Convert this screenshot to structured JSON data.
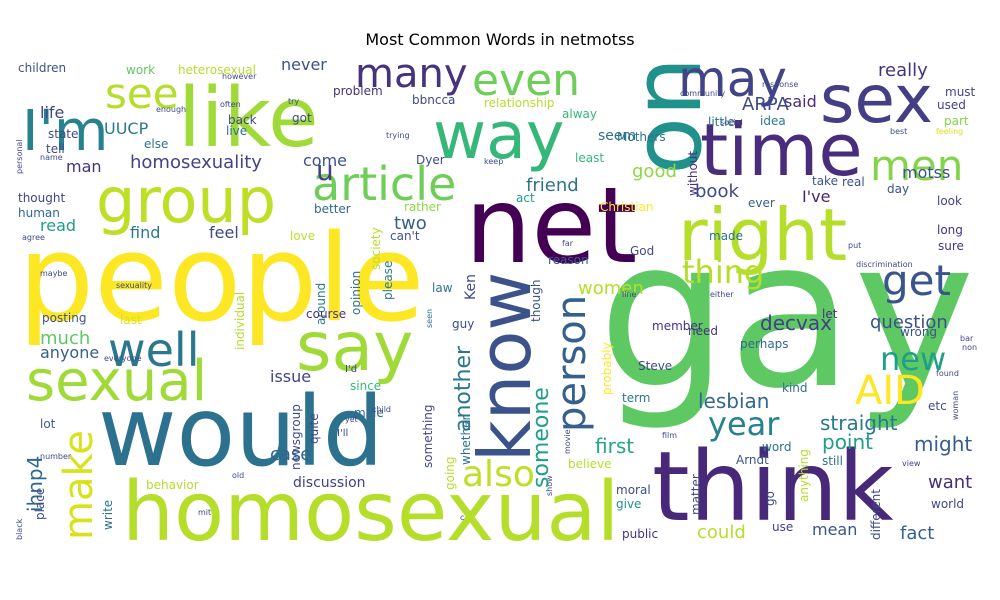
{
  "title": "Most Common Words in netmotss",
  "chart_data": {
    "type": "wordcloud",
    "title": "Most Common Words in netmotss",
    "palette": "viridis",
    "words": [
      {
        "text": "gay",
        "weight": 1.0
      },
      {
        "text": "people",
        "weight": 0.92
      },
      {
        "text": "one",
        "weight": 0.88
      },
      {
        "text": "net",
        "weight": 0.8
      },
      {
        "text": "think",
        "weight": 0.78
      },
      {
        "text": "would",
        "weight": 0.76
      },
      {
        "text": "homosexual",
        "weight": 0.72
      },
      {
        "text": "like",
        "weight": 0.7
      },
      {
        "text": "right",
        "weight": 0.66
      },
      {
        "text": "know",
        "weight": 0.64
      },
      {
        "text": "time",
        "weight": 0.6
      },
      {
        "text": "way",
        "weight": 0.56
      },
      {
        "text": "group",
        "weight": 0.54
      },
      {
        "text": "sex",
        "weight": 0.52
      },
      {
        "text": "I'm",
        "weight": 0.5
      },
      {
        "text": "sexual",
        "weight": 0.48
      },
      {
        "text": "say",
        "weight": 0.46
      },
      {
        "text": "article",
        "weight": 0.42
      },
      {
        "text": "may",
        "weight": 0.4
      },
      {
        "text": "even",
        "weight": 0.4
      },
      {
        "text": "many",
        "weight": 0.36
      },
      {
        "text": "see",
        "weight": 0.36
      },
      {
        "text": "person",
        "weight": 0.36
      },
      {
        "text": "well",
        "weight": 0.36
      },
      {
        "text": "men",
        "weight": 0.36
      },
      {
        "text": "AID",
        "weight": 0.34
      },
      {
        "text": "get",
        "weight": 0.34
      },
      {
        "text": "make",
        "weight": 0.32
      },
      {
        "text": "also",
        "weight": 0.32
      },
      {
        "text": "year",
        "weight": 0.3
      },
      {
        "text": "thing",
        "weight": 0.3
      },
      {
        "text": "new",
        "weight": 0.28
      },
      {
        "text": "u",
        "weight": 0.26
      },
      {
        "text": "someone",
        "weight": 0.22
      },
      {
        "text": "another",
        "weight": 0.22
      },
      {
        "text": "ihnp4",
        "weight": 0.2
      },
      {
        "text": "decvax",
        "weight": 0.2
      },
      {
        "text": "lesbian",
        "weight": 0.2
      },
      {
        "text": "straight",
        "weight": 0.2
      },
      {
        "text": "question",
        "weight": 0.2
      },
      {
        "text": "point",
        "weight": 0.18
      },
      {
        "text": "might",
        "weight": 0.18
      },
      {
        "text": "first",
        "weight": 0.18
      },
      {
        "text": "book",
        "weight": 0.18
      },
      {
        "text": "good",
        "weight": 0.18
      },
      {
        "text": "friend",
        "weight": 0.18
      },
      {
        "text": "really",
        "weight": 0.18
      },
      {
        "text": "homosexuality",
        "weight": 0.18
      },
      {
        "text": "ARPA",
        "weight": 0.18
      },
      {
        "text": "two",
        "weight": 0.18
      },
      {
        "text": "women",
        "weight": 0.18
      },
      {
        "text": "UUCP",
        "weight": 0.16
      },
      {
        "text": "said",
        "weight": 0.16
      },
      {
        "text": "never",
        "weight": 0.16
      },
      {
        "text": "much",
        "weight": 0.16
      },
      {
        "text": "anyone",
        "weight": 0.16
      },
      {
        "text": "case",
        "weight": 0.16
      },
      {
        "text": "could",
        "weight": 0.16
      },
      {
        "text": "want",
        "weight": 0.16
      },
      {
        "text": "fact",
        "weight": 0.16
      },
      {
        "text": "mean",
        "weight": 0.16
      },
      {
        "text": "issue",
        "weight": 0.16
      },
      {
        "text": "find",
        "weight": 0.16
      },
      {
        "text": "feel",
        "weight": 0.16
      },
      {
        "text": "life",
        "weight": 0.16
      },
      {
        "text": "come",
        "weight": 0.16
      },
      {
        "text": "I've",
        "weight": 0.16
      },
      {
        "text": "man",
        "weight": 0.16
      },
      {
        "text": "read",
        "weight": 0.16
      },
      {
        "text": "motss",
        "weight": 0.16
      },
      {
        "text": "seem",
        "weight": 0.14
      },
      {
        "text": "discussion",
        "weight": 0.14
      },
      {
        "text": "Ken",
        "weight": 0.14
      },
      {
        "text": "Dyer",
        "weight": 0.12
      },
      {
        "text": "bbncca",
        "weight": 0.12
      },
      {
        "text": "thought",
        "weight": 0.12
      },
      {
        "text": "human",
        "weight": 0.12
      },
      {
        "text": "posting",
        "weight": 0.12
      },
      {
        "text": "children",
        "weight": 0.12
      },
      {
        "text": "work",
        "weight": 0.12
      },
      {
        "text": "heterosexual",
        "weight": 0.12
      },
      {
        "text": "problem",
        "weight": 0.12
      },
      {
        "text": "relationship",
        "weight": 0.12
      },
      {
        "text": "least",
        "weight": 0.12
      },
      {
        "text": "Mothers",
        "weight": 0.12
      },
      {
        "text": "little",
        "weight": 0.12
      },
      {
        "text": "idea",
        "weight": 0.12
      },
      {
        "text": "must",
        "weight": 0.12
      },
      {
        "text": "used",
        "weight": 0.12
      },
      {
        "text": "part",
        "weight": 0.12
      },
      {
        "text": "look",
        "weight": 0.12
      },
      {
        "text": "long",
        "weight": 0.12
      },
      {
        "text": "sure",
        "weight": 0.12
      },
      {
        "text": "take",
        "weight": 0.12
      },
      {
        "text": "real",
        "weight": 0.12
      },
      {
        "text": "day",
        "weight": 0.12
      },
      {
        "text": "ever",
        "weight": 0.12
      },
      {
        "text": "made",
        "weight": 0.12
      },
      {
        "text": "God",
        "weight": 0.12
      },
      {
        "text": "Christian",
        "weight": 0.12
      },
      {
        "text": "rather",
        "weight": 0.12
      },
      {
        "text": "act",
        "weight": 0.12
      },
      {
        "text": "can't",
        "weight": 0.12
      },
      {
        "text": "better",
        "weight": 0.12
      },
      {
        "text": "love",
        "weight": 0.12
      },
      {
        "text": "opinion",
        "weight": 0.12
      },
      {
        "text": "around",
        "weight": 0.12
      },
      {
        "text": "society",
        "weight": 0.12
      },
      {
        "text": "please",
        "weight": 0.12
      },
      {
        "text": "reason",
        "weight": 0.12
      },
      {
        "text": "law",
        "weight": 0.12
      },
      {
        "text": "course",
        "weight": 0.12
      },
      {
        "text": "last",
        "weight": 0.12
      },
      {
        "text": "individual",
        "weight": 0.12
      },
      {
        "text": "guy",
        "weight": 0.12
      },
      {
        "text": "though",
        "weight": 0.12
      },
      {
        "text": "probably",
        "weight": 0.12
      },
      {
        "text": "member",
        "weight": 0.12
      },
      {
        "text": "need",
        "weight": 0.12
      },
      {
        "text": "perhaps",
        "weight": 0.12
      },
      {
        "text": "let",
        "weight": 0.12
      },
      {
        "text": "wrong",
        "weight": 0.12
      },
      {
        "text": "kind",
        "weight": 0.12
      },
      {
        "text": "Steve",
        "weight": 0.12
      },
      {
        "text": "term",
        "weight": 0.12
      },
      {
        "text": "since",
        "weight": 0.12
      },
      {
        "text": "male",
        "weight": 0.12
      },
      {
        "text": "quite",
        "weight": 0.12
      },
      {
        "text": "newsgroup",
        "weight": 0.12
      },
      {
        "text": "something",
        "weight": 0.12
      },
      {
        "text": "whether",
        "weight": 0.12
      },
      {
        "text": "going",
        "weight": 0.12
      },
      {
        "text": "believe",
        "weight": 0.12
      },
      {
        "text": "moral",
        "weight": 0.12
      },
      {
        "text": "give",
        "weight": 0.12
      },
      {
        "text": "public",
        "weight": 0.12
      },
      {
        "text": "Arndt",
        "weight": 0.12
      },
      {
        "text": "word",
        "weight": 0.12
      },
      {
        "text": "still",
        "weight": 0.12
      },
      {
        "text": "etc",
        "weight": 0.12
      },
      {
        "text": "world",
        "weight": 0.12
      },
      {
        "text": "use",
        "weight": 0.12
      },
      {
        "text": "go",
        "weight": 0.12
      },
      {
        "text": "anything",
        "weight": 0.12
      },
      {
        "text": "different",
        "weight": 0.12
      },
      {
        "text": "matter",
        "weight": 0.1
      },
      {
        "text": "behavior",
        "weight": 0.12
      },
      {
        "text": "write",
        "weight": 0.12
      },
      {
        "text": "place",
        "weight": 0.12
      },
      {
        "text": "lot",
        "weight": 0.12
      },
      {
        "text": "state",
        "weight": 0.12
      },
      {
        "text": "tell",
        "weight": 0.12
      },
      {
        "text": "else",
        "weight": 0.12
      },
      {
        "text": "back",
        "weight": 0.12
      },
      {
        "text": "got",
        "weight": 0.12
      },
      {
        "text": "live",
        "weight": 0.12
      },
      {
        "text": "alway",
        "weight": 0.12
      },
      {
        "text": "without",
        "weight": 0.12
      },
      {
        "text": "I'd",
        "weight": 0.1
      },
      {
        "text": "I'll",
        "weight": 0.1
      },
      {
        "text": "child",
        "weight": 0.08
      },
      {
        "text": "yet",
        "weight": 0.08
      },
      {
        "text": "seen",
        "weight": 0.06
      },
      {
        "text": "community",
        "weight": 0.06
      },
      {
        "text": "social",
        "weight": 0.06
      },
      {
        "text": "response",
        "weight": 0.06
      },
      {
        "text": "trying",
        "weight": 0.06
      },
      {
        "text": "keep",
        "weight": 0.06
      },
      {
        "text": "however",
        "weight": 0.06
      },
      {
        "text": "often",
        "weight": 0.06
      },
      {
        "text": "try",
        "weight": 0.06
      },
      {
        "text": "enough",
        "weight": 0.06
      },
      {
        "text": "name",
        "weight": 0.06
      },
      {
        "text": "personal",
        "weight": 0.06
      },
      {
        "text": "agree",
        "weight": 0.06
      },
      {
        "text": "maybe",
        "weight": 0.06
      },
      {
        "text": "sexuality",
        "weight": 0.06
      },
      {
        "text": "everyone",
        "weight": 0.06
      },
      {
        "text": "best",
        "weight": 0.06
      },
      {
        "text": "feeling",
        "weight": 0.06
      },
      {
        "text": "far",
        "weight": 0.06
      },
      {
        "text": "put",
        "weight": 0.06
      },
      {
        "text": "discrimination",
        "weight": 0.06
      },
      {
        "text": "line",
        "weight": 0.06
      },
      {
        "text": "either",
        "weight": 0.06
      },
      {
        "text": "film",
        "weight": 0.06
      },
      {
        "text": "movie",
        "weight": 0.06
      },
      {
        "text": "show",
        "weight": 0.06
      },
      {
        "text": "view",
        "weight": 0.06
      },
      {
        "text": "woman",
        "weight": 0.06
      },
      {
        "text": "found",
        "weight": 0.06
      },
      {
        "text": "non",
        "weight": 0.06
      },
      {
        "text": "bar",
        "weight": 0.06
      },
      {
        "text": "number",
        "weight": 0.06
      },
      {
        "text": "old",
        "weight": 0.06
      },
      {
        "text": "mit",
        "weight": 0.06
      },
      {
        "text": "black",
        "weight": 0.06
      },
      {
        "text": "c",
        "weight": 0.06
      }
    ]
  }
}
